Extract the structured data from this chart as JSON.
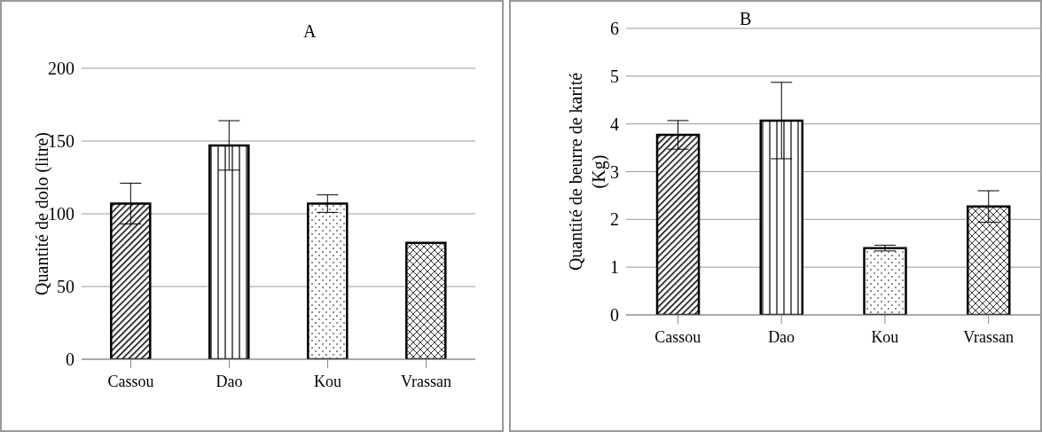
{
  "chart_data": [
    {
      "type": "bar",
      "title": "A",
      "ylabel": "Quantité de dolo (litre)",
      "categories": [
        "Cassou",
        "Dao",
        "Kou",
        "Vrassan"
      ],
      "values": [
        107,
        147,
        107,
        80
      ],
      "errors": [
        14,
        17,
        6,
        null
      ],
      "colors": [
        "#000000",
        "#000000",
        "#000000",
        "#000000"
      ],
      "ylim": [
        0,
        200
      ],
      "yticks": [
        0,
        50,
        100,
        150,
        200
      ],
      "grid": "y"
    },
    {
      "type": "bar",
      "title": "B",
      "ylabel": "Quantité de beurre de karité (Kg)",
      "categories": [
        "Cassou",
        "Dao",
        "Kou",
        "Vrassan"
      ],
      "values": [
        3.77,
        4.07,
        1.4,
        2.27
      ],
      "errors": [
        0.3,
        0.8,
        0.06,
        0.33
      ],
      "colors": [
        "#000000",
        "#000000",
        "#000000",
        "#000000"
      ],
      "ylim": [
        0,
        6
      ],
      "yticks": [
        0,
        1,
        2,
        3,
        4,
        5,
        6
      ],
      "grid": "y"
    }
  ]
}
